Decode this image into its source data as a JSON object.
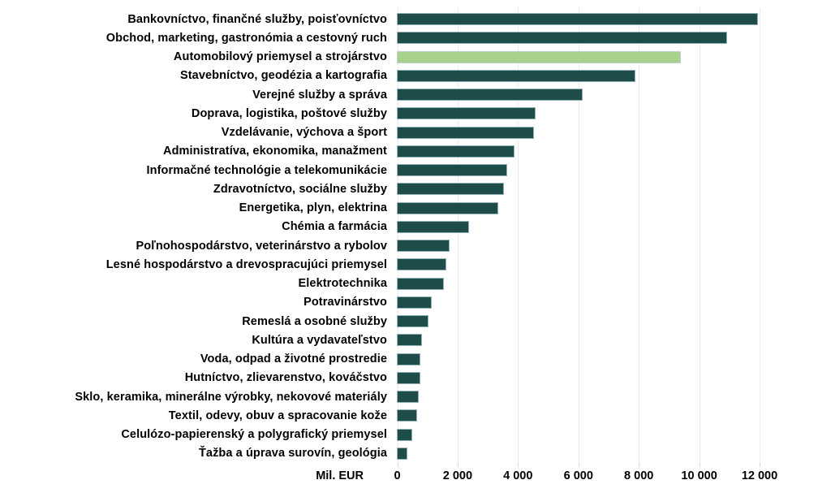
{
  "chart_data": {
    "type": "bar",
    "orientation": "horizontal",
    "title": "",
    "xlabel": "Mil. EUR",
    "ylabel": "",
    "xlim": [
      0,
      12000
    ],
    "grid": true,
    "x_ticks": [
      "0",
      "2 000",
      "4 000",
      "6 000",
      "8 000",
      "10 000",
      "12 000"
    ],
    "unit_label": "Mil. EUR",
    "bar_color": "#1d4c49",
    "highlight_color": "#a9d18e",
    "gridline_color": "#ececec",
    "highlighted_index": 2,
    "categories": [
      "Bankovníctvo, finančné služby, poisťovníctvo",
      "Obchod, marketing, gastronómia a cestovný ruch",
      "Automobilový priemysel a strojárstvo",
      "Stavebníctvo, geodézia a kartografia",
      "Verejné služby a správa",
      "Doprava, logistika, poštové služby",
      "Vzdelávanie, výchova a šport",
      "Administratíva, ekonomika, manažment",
      "Informačné technológie a telekomunikácie",
      "Zdravotníctvo, sociálne služby",
      "Energetika, plyn, elektrina",
      "Chémia a farmácia",
      "Poľnohospodárstvo, veterinárstvo a rybolov",
      "Lesné hospodárstvo a drevospracujúci priemysel",
      "Elektrotechnika",
      "Potravinárstvo",
      "Remeslá a osobné služby",
      "Kultúra a vydavateľstvo",
      "Voda, odpad a životné prostredie",
      "Hutníctvo, zlievarenstvo, kováčstvo",
      "Sklo, keramika, minerálne výrobky, nekovové materiály",
      "Textil, odevy, obuv a spracovanie kože",
      "Celulózo-papierenský a polygrafický priemysel",
      "Ťažba a úprava surovín, geológia"
    ],
    "values": [
      11950,
      10950,
      9400,
      7900,
      6150,
      4600,
      4550,
      3900,
      3650,
      3550,
      3350,
      2400,
      1750,
      1650,
      1550,
      1150,
      1050,
      830,
      780,
      770,
      720,
      670,
      520,
      340
    ]
  }
}
